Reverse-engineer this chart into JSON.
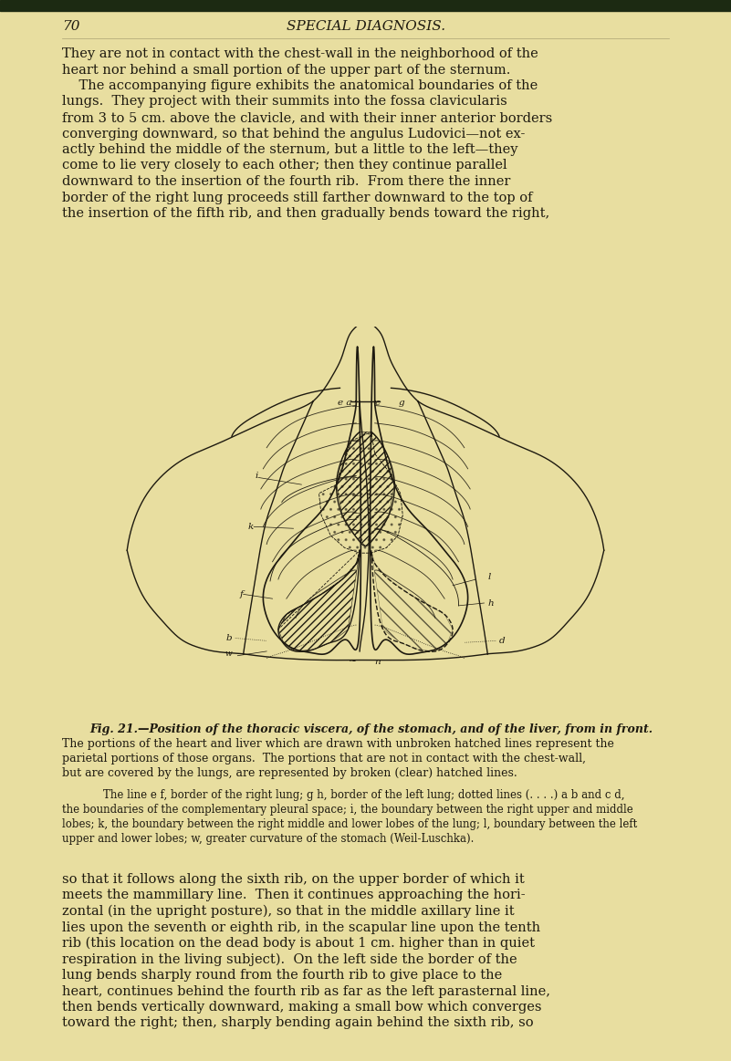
{
  "bg_color": "#e8dea0",
  "page_number": "70",
  "header_title": "SPECIAL DIAGNOSIS.",
  "top_paragraph_lines": [
    "They are not in contact with the chest-wall in the neighborhood of the",
    "heart nor behind a small portion of the upper part of the sternum.",
    "    The accompanying figure exhibits the anatomical boundaries of the",
    "lungs.  They project with their summits into the fossa clavicularis",
    "from 3 to 5 cm. above the clavicle, and with their inner anterior borders",
    "converging downward, so that behind the angulus Ludovici—not ex-",
    "actly behind the middle of the sternum, but a little to the left—they",
    "come to lie very closely to each other; then they continue parallel",
    "downward to the insertion of the fourth rib.  From there the inner",
    "border of the right lung proceeds still farther downward to the top of",
    "the insertion of the fifth rib, and then gradually bends toward the right,"
  ],
  "fig_caption_line1": "Fig. 21.—Position of the thoracic viscera, of the stomach, and of the liver, from in front.",
  "fig_caption_lines": [
    "The portions of the heart and liver which are drawn with unbroken hatched lines represent the",
    "parietal portions of those organs.  The portions that are not in contact with the chest-wall,",
    "but are covered by the lungs, are represented by broken (clear) hatched lines."
  ],
  "fig_caption_lines2": [
    "    The line e f, border of the right lung; g h, border of the left lung; dotted lines (. . . .) a b and c d,",
    "the boundaries of the complementary pleural space; i, the boundary between the right upper and middle",
    "lobes; k, the boundary between the right middle and lower lobes of the lung; l, boundary between the left",
    "upper and lower lobes; w, greater curvature of the stomach (Weil-Luschka)."
  ],
  "bottom_paragraph_lines": [
    "so that it follows along the sixth rib, on the upper border of which it",
    "meets the mammillary line.  Then it continues approaching the hori-",
    "zontal (in the upright posture), so that in the middle axillary line it",
    "lies upon the seventh or eighth rib, in the scapular line upon the tenth",
    "rib (this location on the dead body is about 1 cm. higher than in quiet",
    "respiration in the living subject).  On the left side the border of the",
    "lung bends sharply round from the fourth rib to give place to the",
    "heart, continues behind the fourth rib as far as the left parasternal line,",
    "then bends vertically downward, making a small bow which converges",
    "toward the right; then, sharply bending again behind the sixth rib, so"
  ],
  "text_color": "#1e1a10",
  "top_strip_color": "#1a2a10"
}
